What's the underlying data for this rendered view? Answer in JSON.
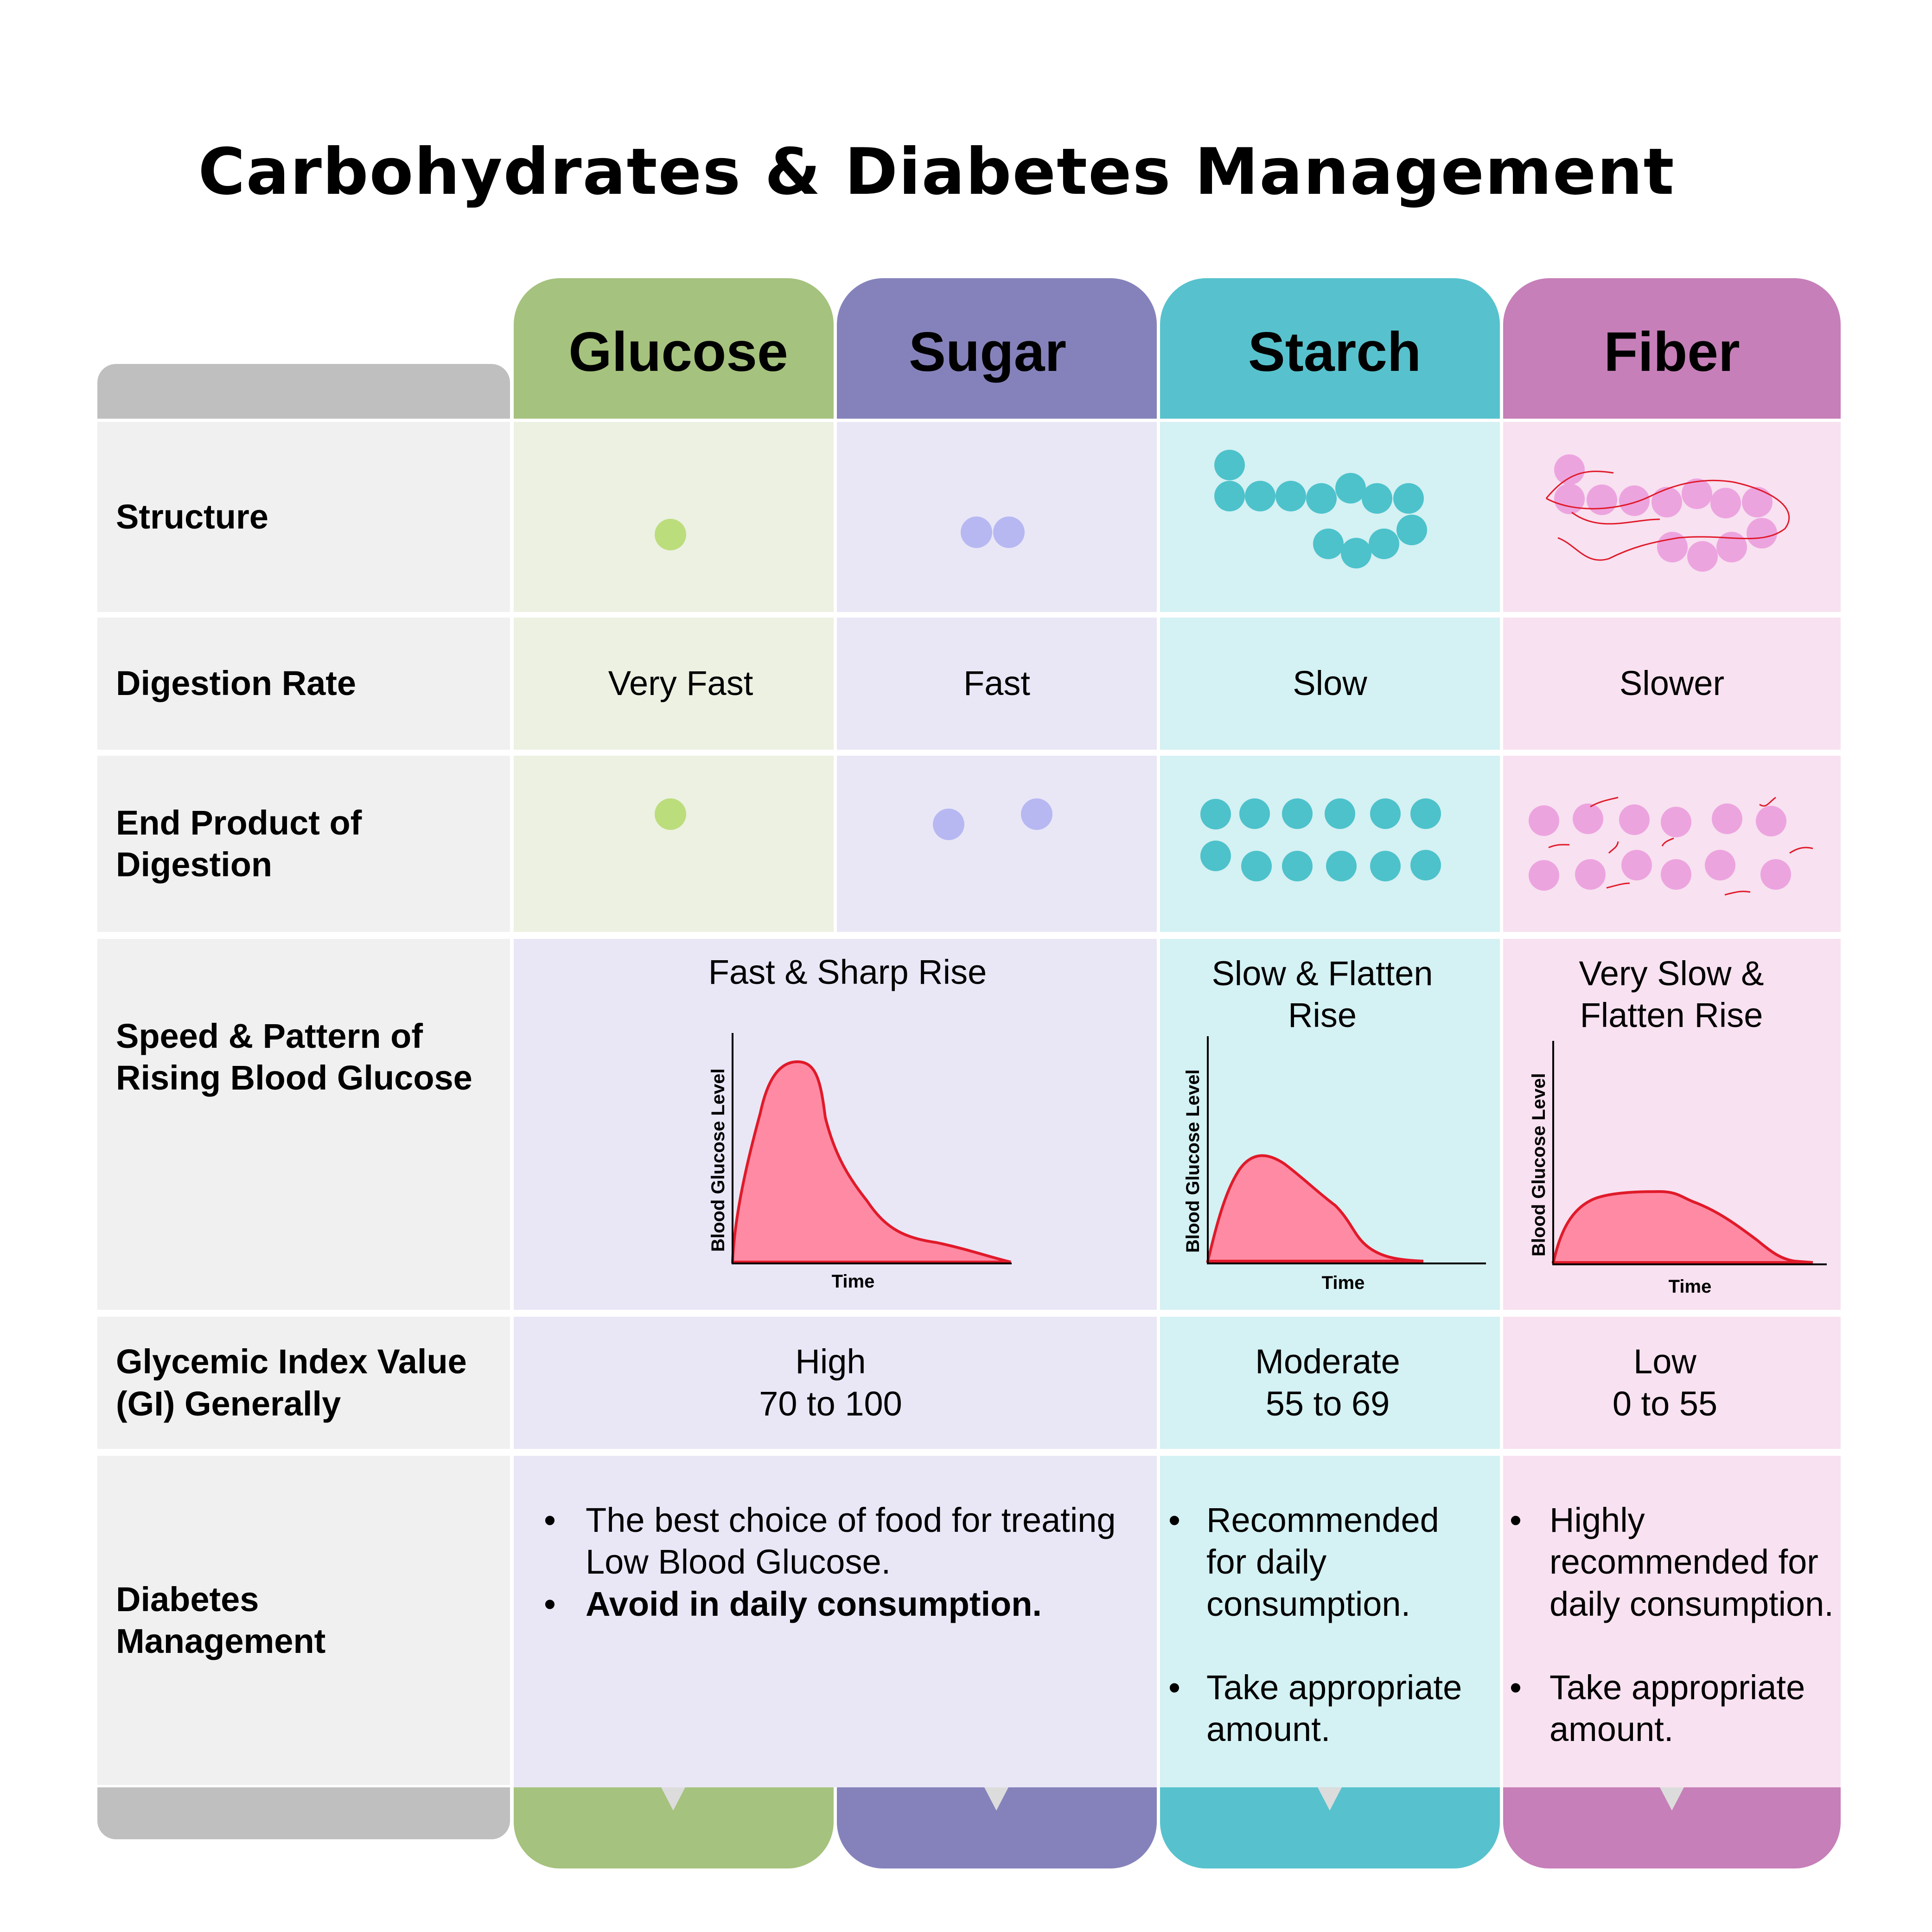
{
  "title": "Carbohydrates & Diabetes Management",
  "colors": {
    "glucose": "#a5c27e",
    "glucose_light": "#ecf1e2",
    "glucose_dot": "#bcdd7c",
    "sugar": "#8582bb",
    "sugar_light": "#e9e7f6",
    "sugar_dot": "#b7b8f2",
    "starch": "#57c2cd",
    "starch_light": "#d4f1f3",
    "starch_dot": "#4dc2cb",
    "fiber": "#c67fb8",
    "fiber_light": "#f8e1f0",
    "fiber_dot": "#eca4df",
    "label_header": "#bfbfbf",
    "label_bg": "#f0f0f0",
    "curve_fill": "#ff8aa3",
    "curve_line": "#e01a2a"
  },
  "columns": [
    "Glucose",
    "Sugar",
    "Starch",
    "Fiber"
  ],
  "rows": {
    "structure": "Structure",
    "digestion_rate": "Digestion Rate",
    "end_product": "End Product of Digestion",
    "pattern": "Speed & Pattern of Rising Blood Glucose",
    "gi": "Glycemic Index Value (GI) Generally",
    "management": "Diabetes Management"
  },
  "digestion_rate": [
    "Very Fast",
    "Fast",
    "Slow",
    "Slower"
  ],
  "pattern": {
    "glucose_sugar": "Fast & Sharp Rise",
    "starch": "Slow & Flatten Rise",
    "fiber": "Very Slow & Flatten Rise",
    "axis_y": "Blood Glucose Level",
    "axis_x": "Time"
  },
  "gi": {
    "glucose_sugar": {
      "level": "High",
      "range": "70 to 100"
    },
    "starch": {
      "level": "Moderate",
      "range": "55 to 69"
    },
    "fiber": {
      "level": "Low",
      "range": "0 to 55"
    }
  },
  "management": {
    "glucose_sugar": [
      "The best choice of food for treating Low Blood Glucose.",
      "Avoid in daily consumption."
    ],
    "starch": [
      "Recommended for daily consumption.",
      "Take appropriate amount."
    ],
    "fiber": [
      "Highly recommended for daily consumption.",
      "Take appropriate amount."
    ]
  }
}
